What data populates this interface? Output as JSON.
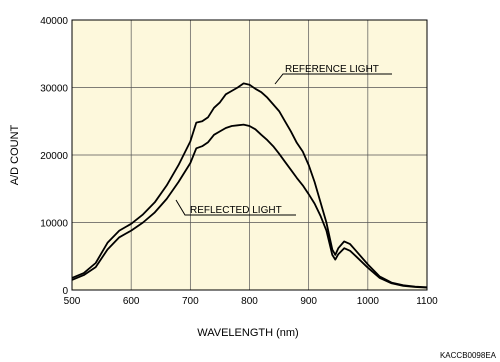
{
  "chart_data": {
    "type": "line",
    "title": "",
    "xlabel": "WAVELENGTH (nm)",
    "ylabel": "A/D COUNT",
    "xlim": [
      500,
      1100
    ],
    "ylim": [
      0,
      40000
    ],
    "x_ticks": [
      500,
      600,
      700,
      800,
      900,
      1000,
      1100
    ],
    "y_ticks": [
      0,
      10000,
      20000,
      30000,
      40000
    ],
    "grid": true,
    "background": "#fdf8dc",
    "line_color": "#000000",
    "series": [
      {
        "name": "REFERENCE LIGHT",
        "x": [
          500,
          520,
          540,
          560,
          580,
          600,
          620,
          640,
          660,
          680,
          700,
          710,
          720,
          730,
          740,
          750,
          760,
          770,
          780,
          790,
          800,
          810,
          820,
          830,
          840,
          850,
          860,
          870,
          880,
          890,
          900,
          910,
          920,
          930,
          940,
          945,
          950,
          960,
          970,
          980,
          1000,
          1020,
          1040,
          1060,
          1080,
          1100
        ],
        "values": [
          1800,
          2500,
          4000,
          7000,
          8800,
          9800,
          11200,
          13000,
          15500,
          18500,
          22000,
          24800,
          25000,
          25600,
          27000,
          27800,
          29000,
          29500,
          30000,
          30600,
          30400,
          29800,
          29300,
          28500,
          27500,
          26500,
          25000,
          23500,
          21800,
          20500,
          18500,
          16000,
          13000,
          10000,
          6000,
          5200,
          6200,
          7200,
          6800,
          5800,
          3800,
          2000,
          1100,
          700,
          500,
          400
        ]
      },
      {
        "name": "REFLECTED LIGHT",
        "x": [
          500,
          520,
          540,
          560,
          580,
          600,
          620,
          640,
          660,
          680,
          700,
          710,
          720,
          730,
          740,
          750,
          760,
          770,
          780,
          790,
          800,
          810,
          820,
          830,
          840,
          850,
          860,
          870,
          880,
          890,
          900,
          910,
          920,
          930,
          940,
          945,
          950,
          960,
          970,
          980,
          1000,
          1020,
          1040,
          1060,
          1080,
          1100
        ],
        "values": [
          1500,
          2200,
          3400,
          6000,
          7800,
          8800,
          10000,
          11500,
          13500,
          16000,
          18800,
          21000,
          21300,
          21900,
          23000,
          23500,
          24000,
          24300,
          24400,
          24500,
          24300,
          23800,
          23000,
          22200,
          21300,
          20200,
          19000,
          17800,
          16600,
          15500,
          14200,
          12800,
          11000,
          8800,
          5200,
          4500,
          5300,
          6200,
          5800,
          5000,
          3300,
          1800,
          1000,
          600,
          450,
          350
        ]
      }
    ],
    "annotations": [
      "REFERENCE LIGHT",
      "REFLECTED LIGHT"
    ],
    "code": "KACCB0098EA"
  }
}
